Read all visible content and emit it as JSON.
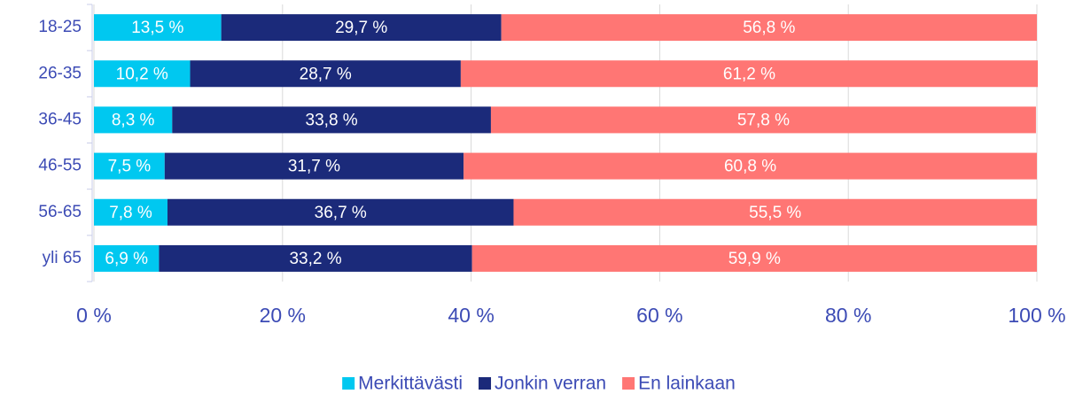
{
  "chart_data": {
    "type": "stacked_barh",
    "categories": [
      "18-25",
      "26-35",
      "36-45",
      "46-55",
      "56-65",
      "yli 65"
    ],
    "series": [
      {
        "name": "Merkittävästi",
        "color": "#00c8f0",
        "values": [
          13.5,
          10.2,
          8.3,
          7.5,
          7.8,
          6.9
        ],
        "value_labels": [
          "13,5 %",
          "10,2 %",
          "8,3 %",
          "7,5 %",
          "7,8 %",
          "6,9 %"
        ]
      },
      {
        "name": "Jonkin verran",
        "color": "#1b2a7a",
        "values": [
          29.7,
          28.7,
          33.8,
          31.7,
          36.7,
          33.2
        ],
        "value_labels": [
          "29,7 %",
          "28,7 %",
          "33,8 %",
          "31,7 %",
          "36,7 %",
          "33,2 %"
        ]
      },
      {
        "name": "En lainkaan",
        "color": "#ff7674",
        "values": [
          56.8,
          61.2,
          57.8,
          60.8,
          55.5,
          59.9
        ],
        "value_labels": [
          "56,8 %",
          "61,2 %",
          "57,8 %",
          "60,8 %",
          "55,5 %",
          "59,9 %"
        ]
      }
    ],
    "xlim": [
      0,
      100
    ],
    "xticks": [
      {
        "value": 0,
        "label": "0 %"
      },
      {
        "value": 20,
        "label": "20 %"
      },
      {
        "value": 40,
        "label": "40 %"
      },
      {
        "value": 60,
        "label": "60 %"
      },
      {
        "value": 80,
        "label": "80 %"
      },
      {
        "value": 100,
        "label": "100 %"
      }
    ],
    "grid": true,
    "legend": "bottom"
  }
}
